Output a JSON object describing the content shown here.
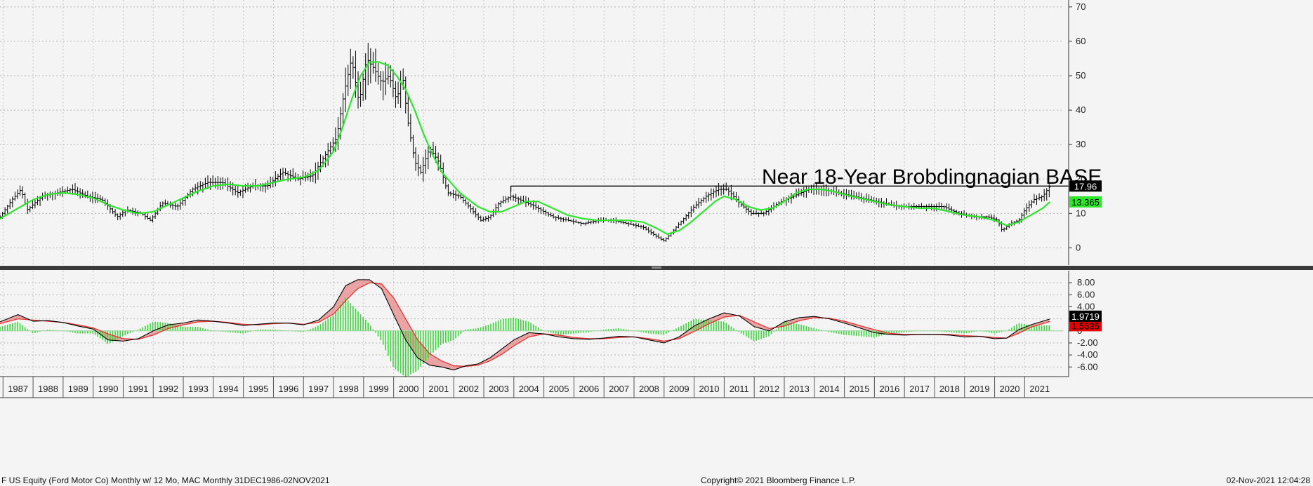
{
  "chart_data": [
    {
      "type": "ohlc",
      "panel": "price",
      "ylim": [
        -5,
        72
      ],
      "yticks": [
        0,
        10,
        20,
        30,
        40,
        50,
        60,
        70
      ],
      "grid": true,
      "annotation": "Near 18-Year Brobdingnagian BASE",
      "base_level": 17.96,
      "base_from": 2003.9,
      "last_price_label": "17.96",
      "ma_label": "13.365",
      "colors": {
        "price": "#000000",
        "ma": "#2ee62e",
        "last_tag_bg": "#000000",
        "ma_tag_bg": "#2ee62e"
      },
      "series": [
        {
          "name": "Price",
          "x": [
            1986.9,
            1987.3,
            1987.6,
            1987.8,
            1988.3,
            1988.8,
            1989.3,
            1989.8,
            1990.3,
            1990.8,
            1991.1,
            1991.6,
            1991.9,
            1992.3,
            1992.8,
            1993.3,
            1993.8,
            1994.3,
            1994.8,
            1995.3,
            1995.8,
            1996.3,
            1996.8,
            1997.3,
            1997.8,
            1998.1,
            1998.35,
            1998.6,
            1998.85,
            1999.1,
            1999.35,
            1999.6,
            1999.85,
            2000.1,
            2000.3,
            2000.45,
            2000.7,
            2000.9,
            2001.2,
            2001.5,
            2001.8,
            2002.2,
            2002.5,
            2002.9,
            2003.2,
            2003.5,
            2003.9,
            2004.2,
            2004.7,
            2005.3,
            2005.8,
            2006.3,
            2006.8,
            2007.3,
            2007.8,
            2008.3,
            2008.8,
            2009.0,
            2009.3,
            2009.7,
            2010.0,
            2010.4,
            2010.8,
            2011.1,
            2011.5,
            2011.9,
            2012.3,
            2012.8,
            2013.3,
            2013.8,
            2014.3,
            2014.8,
            2015.3,
            2015.8,
            2016.3,
            2016.8,
            2017.3,
            2017.8,
            2018.3,
            2018.8,
            2019.3,
            2019.8,
            2020.1,
            2020.25,
            2020.5,
            2020.8,
            2021.0,
            2021.3,
            2021.6,
            2021.84
          ],
          "values": [
            9,
            14,
            17,
            11,
            15,
            16,
            17,
            15,
            14,
            9,
            11,
            10,
            8,
            13,
            12,
            17,
            19,
            19,
            16,
            18,
            18,
            22,
            20,
            21,
            28,
            32,
            45,
            55,
            42,
            55,
            52,
            48,
            50,
            43,
            50,
            38,
            25,
            22,
            29,
            25,
            16,
            15,
            12,
            8,
            9,
            13,
            15,
            14,
            12,
            9,
            8,
            7,
            8,
            8,
            7,
            6,
            3,
            2,
            5,
            9,
            12,
            15,
            17,
            17,
            13,
            10,
            10,
            13,
            15,
            17,
            17,
            16,
            15,
            14,
            13,
            12,
            12,
            12,
            12,
            10,
            9,
            9,
            8,
            5,
            7,
            8,
            11,
            14,
            15,
            17.96
          ]
        },
        {
          "name": "12 Mo MA",
          "x": [
            1986.9,
            1987.5,
            1988.0,
            1988.5,
            1989.0,
            1989.5,
            1990.0,
            1990.5,
            1991.0,
            1991.5,
            1992.0,
            1992.5,
            1993.0,
            1993.5,
            1994.0,
            1994.5,
            1995.0,
            1995.5,
            1996.0,
            1996.5,
            1997.0,
            1997.5,
            1998.0,
            1998.3,
            1998.6,
            1998.9,
            1999.2,
            1999.5,
            1999.8,
            2000.1,
            2000.4,
            2000.7,
            2001.0,
            2001.3,
            2001.6,
            2001.9,
            2002.2,
            2002.5,
            2002.8,
            2003.2,
            2003.6,
            2004.0,
            2004.4,
            2004.8,
            2005.3,
            2005.8,
            2006.3,
            2006.8,
            2007.3,
            2007.8,
            2008.3,
            2008.8,
            2009.1,
            2009.5,
            2009.9,
            2010.3,
            2010.7,
            2011.0,
            2011.4,
            2011.8,
            2012.2,
            2012.6,
            2013.0,
            2013.4,
            2013.8,
            2014.2,
            2014.6,
            2015.0,
            2015.5,
            2016.0,
            2016.5,
            2017.0,
            2017.5,
            2018.0,
            2018.5,
            2019.0,
            2019.5,
            2020.0,
            2020.4,
            2020.8,
            2021.2,
            2021.6,
            2021.84
          ],
          "values": [
            8.5,
            11.5,
            14,
            15.5,
            16,
            15.5,
            14.5,
            12.5,
            11,
            10,
            10.5,
            12.5,
            14.5,
            16.5,
            18,
            18.5,
            18,
            18,
            19,
            20,
            20.5,
            22.5,
            28,
            35,
            43,
            50,
            54,
            54,
            53,
            50,
            46,
            40,
            33,
            27,
            22,
            19,
            16,
            14,
            12,
            10.5,
            10.5,
            12,
            13.5,
            13.5,
            11.5,
            9.5,
            8.5,
            8,
            8,
            8,
            7.5,
            5.5,
            4,
            5,
            7.5,
            10.5,
            13.5,
            15,
            14,
            12,
            11,
            11.5,
            13.5,
            16,
            17,
            17,
            16.5,
            15.5,
            14.5,
            13.5,
            12.5,
            12,
            11.5,
            11.5,
            10.5,
            9.5,
            9,
            8,
            6.5,
            7.5,
            9.5,
            11.5,
            13.365
          ]
        }
      ]
    },
    {
      "type": "line",
      "panel": "indicator",
      "ylim": [
        -7.6,
        10
      ],
      "yticks": [
        "8.00",
        "6.00",
        "4.00",
        "2.00",
        "0",
        "-2.00",
        "-4.00",
        "-6.00"
      ],
      "tick_values": [
        8,
        6,
        4,
        2,
        0,
        -2,
        -4,
        -6
      ],
      "grid": true,
      "last_label": "1.9719",
      "signal_label": "1.5635",
      "colors": {
        "macd": "#000000",
        "signal": "#e63232",
        "fill": "#e88a8a",
        "hist": "#38d838",
        "hist_label_bg": "#000000",
        "signal_label_bg": "#e60000"
      },
      "series": [
        {
          "name": "MACD",
          "x": [
            1986.9,
            1987.5,
            1988.0,
            1988.5,
            1989.0,
            1989.5,
            1990.0,
            1990.5,
            1991.0,
            1991.5,
            1992.0,
            1992.5,
            1993.0,
            1993.5,
            1994.0,
            1994.5,
            1995.0,
            1995.5,
            1996.0,
            1996.5,
            1997.0,
            1997.5,
            1998.0,
            1998.4,
            1998.8,
            1999.2,
            1999.6,
            2000.0,
            2000.4,
            2000.8,
            2001.2,
            2001.6,
            2002.0,
            2002.4,
            2002.8,
            2003.2,
            2003.6,
            2004.0,
            2004.5,
            2005.0,
            2005.5,
            2006.0,
            2006.5,
            2007.0,
            2007.5,
            2008.0,
            2008.5,
            2009.0,
            2009.5,
            2010.0,
            2010.5,
            2011.0,
            2011.5,
            2012.0,
            2012.5,
            2013.0,
            2013.5,
            2014.0,
            2014.5,
            2015.0,
            2015.5,
            2016.0,
            2016.5,
            2017.0,
            2017.5,
            2018.0,
            2018.5,
            2019.0,
            2019.5,
            2020.0,
            2020.4,
            2020.8,
            2021.2,
            2021.84
          ],
          "values": [
            1.5,
            2.7,
            1.6,
            1.7,
            1.4,
            0.8,
            0.3,
            -1.5,
            -1.7,
            -1.3,
            0.0,
            1.0,
            1.3,
            1.8,
            1.6,
            1.3,
            0.9,
            1.1,
            1.3,
            1.3,
            1.0,
            1.8,
            4.0,
            7.5,
            8.5,
            8.5,
            7.0,
            2.7,
            -1.5,
            -4.5,
            -5.7,
            -6.0,
            -6.5,
            -5.8,
            -5.5,
            -4.5,
            -3.0,
            -1.5,
            -0.3,
            -0.5,
            -1.0,
            -1.3,
            -1.4,
            -1.2,
            -0.9,
            -1.0,
            -1.5,
            -2.0,
            -1.0,
            0.8,
            2.0,
            3.0,
            2.5,
            0.7,
            0.0,
            1.5,
            2.2,
            2.4,
            2.0,
            1.3,
            0.5,
            -0.3,
            -0.6,
            -0.7,
            -0.6,
            -0.6,
            -0.7,
            -1.0,
            -0.9,
            -1.3,
            -1.2,
            0.2,
            1.0,
            1.9719
          ]
        },
        {
          "name": "Signal",
          "x": [
            1986.9,
            1987.5,
            1988.0,
            1988.5,
            1989.0,
            1989.5,
            1990.0,
            1990.5,
            1991.0,
            1991.5,
            1992.0,
            1992.5,
            1993.0,
            1993.5,
            1994.0,
            1994.5,
            1995.0,
            1995.5,
            1996.0,
            1996.5,
            1997.0,
            1997.5,
            1998.0,
            1998.4,
            1998.8,
            1999.2,
            1999.6,
            2000.0,
            2000.4,
            2000.8,
            2001.2,
            2001.6,
            2002.0,
            2002.4,
            2002.8,
            2003.2,
            2003.6,
            2004.0,
            2004.5,
            2005.0,
            2005.5,
            2006.0,
            2006.5,
            2007.0,
            2007.5,
            2008.0,
            2008.5,
            2009.0,
            2009.5,
            2010.0,
            2010.5,
            2011.0,
            2011.5,
            2012.0,
            2012.5,
            2013.0,
            2013.5,
            2014.0,
            2014.5,
            2015.0,
            2015.5,
            2016.0,
            2016.5,
            2017.0,
            2017.5,
            2018.0,
            2018.5,
            2019.0,
            2019.5,
            2020.0,
            2020.4,
            2020.8,
            2021.2,
            2021.84
          ],
          "values": [
            1.2,
            2.0,
            1.8,
            1.6,
            1.4,
            1.0,
            0.5,
            -0.5,
            -1.3,
            -1.4,
            -0.7,
            0.4,
            1.0,
            1.5,
            1.6,
            1.4,
            1.1,
            1.0,
            1.2,
            1.3,
            1.1,
            1.4,
            2.8,
            5.0,
            7.0,
            8.0,
            7.8,
            5.5,
            2.0,
            -1.5,
            -3.8,
            -5.0,
            -5.8,
            -5.9,
            -5.7,
            -5.0,
            -3.9,
            -2.5,
            -1.0,
            -0.5,
            -0.7,
            -1.1,
            -1.3,
            -1.3,
            -1.1,
            -1.0,
            -1.3,
            -1.7,
            -1.3,
            -0.1,
            1.2,
            2.3,
            2.6,
            1.5,
            0.4,
            0.8,
            1.7,
            2.2,
            2.1,
            1.6,
            0.9,
            0.2,
            -0.4,
            -0.6,
            -0.6,
            -0.6,
            -0.6,
            -0.8,
            -0.9,
            -1.1,
            -1.2,
            -0.4,
            0.6,
            1.5635
          ]
        }
      ]
    }
  ],
  "x_axis": {
    "years": [
      "1987",
      "1988",
      "1989",
      "1990",
      "1991",
      "1992",
      "1993",
      "1994",
      "1995",
      "1996",
      "1997",
      "1998",
      "1999",
      "2000",
      "2001",
      "2002",
      "2003",
      "2004",
      "2005",
      "2006",
      "2007",
      "2008",
      "2009",
      "2010",
      "2011",
      "2012",
      "2013",
      "2014",
      "2015",
      "2016",
      "2017",
      "2018",
      "2019",
      "2020",
      "2021"
    ],
    "year_values": [
      1987,
      1988,
      1989,
      1990,
      1991,
      1992,
      1993,
      1994,
      1995,
      1996,
      1997,
      1998,
      1999,
      2000,
      2001,
      2002,
      2003,
      2004,
      2005,
      2006,
      2007,
      2008,
      2009,
      2010,
      2011,
      2012,
      2013,
      2014,
      2015,
      2016,
      2017,
      2018,
      2019,
      2020,
      2021
    ],
    "range": [
      1986.9,
      2022.3
    ]
  },
  "footer": {
    "left": "F US Equity (Ford Motor Co) Monthly w/ 12 Mo, MAC  Monthly 31DEC1986-02NOV2021",
    "center": "Copyright© 2021 Bloomberg Finance L.P.",
    "right": "02-Nov-2021 12:04:28"
  }
}
